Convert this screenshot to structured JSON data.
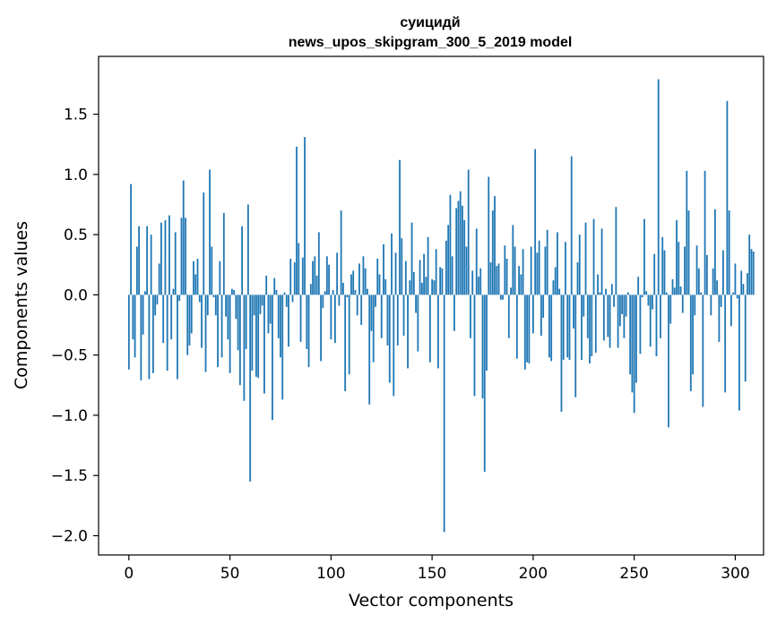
{
  "chart_data": {
    "type": "bar",
    "title": "суицидй",
    "subtitle": "news_upos_skipgram_300_5_2019 model",
    "xlabel": "Vector components",
    "ylabel": "Components values",
    "xlim": [
      -15,
      314
    ],
    "ylim": [
      -2.16,
      1.98
    ],
    "xticks": [
      0,
      50,
      100,
      150,
      200,
      250,
      300
    ],
    "xtick_labels": [
      "0",
      "50",
      "100",
      "150",
      "200",
      "250",
      "300"
    ],
    "yticks": [
      -2.0,
      -1.5,
      -1.0,
      -0.5,
      0.0,
      0.5,
      1.0,
      1.5
    ],
    "ytick_labels": [
      "−2.0",
      "−1.5",
      "−1.0",
      "−0.5",
      "0.0",
      "0.5",
      "1.0",
      "1.5"
    ],
    "grid": false,
    "bar_color": "#1f77b4",
    "values": [
      -0.62,
      0.92,
      -0.37,
      -0.52,
      0.4,
      0.57,
      -0.71,
      -0.33,
      0.03,
      0.57,
      -0.7,
      0.5,
      -0.65,
      -0.17,
      -0.08,
      0.26,
      0.6,
      -0.4,
      0.62,
      -0.63,
      0.66,
      -0.37,
      0.05,
      0.52,
      -0.7,
      -0.05,
      0.64,
      0.95,
      0.64,
      -0.5,
      -0.42,
      -0.32,
      0.28,
      0.17,
      0.3,
      -0.06,
      -0.44,
      0.85,
      -0.64,
      -0.17,
      1.04,
      0.4,
      -0.02,
      -0.17,
      -0.6,
      0.28,
      -0.52,
      0.68,
      -0.18,
      -0.37,
      -0.65,
      0.05,
      0.04,
      -0.2,
      -0.46,
      -0.75,
      0.57,
      -0.88,
      -0.45,
      0.75,
      -1.55,
      -0.63,
      -0.17,
      -0.68,
      -0.69,
      -0.16,
      -0.09,
      -0.82,
      0.16,
      -0.32,
      -0.24,
      -1.04,
      0.14,
      0.04,
      -0.36,
      -0.52,
      -0.87,
      0.02,
      -0.1,
      -0.43,
      0.3,
      -0.06,
      0.27,
      1.23,
      0.43,
      -0.39,
      0.31,
      1.31,
      -0.45,
      -0.6,
      0.09,
      0.28,
      0.32,
      0.16,
      0.52,
      -0.55,
      -0.11,
      0.03,
      0.32,
      0.25,
      -0.37,
      0.04,
      -0.4,
      0.35,
      -0.09,
      0.7,
      0.1,
      -0.8,
      -0.02,
      -0.66,
      0.17,
      0.2,
      0.04,
      -0.17,
      0.26,
      -0.25,
      0.32,
      0.22,
      0.05,
      -0.91,
      -0.3,
      -0.56,
      -0.1,
      0.3,
      0.17,
      -0.36,
      0.42,
      0.13,
      -0.42,
      -0.73,
      0.51,
      -0.84,
      0.35,
      -0.42,
      1.12,
      0.47,
      -0.34,
      0.28,
      -0.61,
      0.12,
      0.6,
      0.19,
      -0.15,
      -0.47,
      0.29,
      0.1,
      0.34,
      0.15,
      0.48,
      -0.56,
      0.13,
      0.12,
      0.38,
      -0.61,
      0.23,
      0.22,
      -1.97,
      0.45,
      0.58,
      0.83,
      0.32,
      -0.3,
      0.72,
      0.78,
      0.86,
      0.74,
      0.62,
      0.4,
      1.04,
      -0.36,
      0.2,
      -0.84,
      0.55,
      0.15,
      0.22,
      -0.86,
      -1.47,
      -0.63,
      0.98,
      0.27,
      0.7,
      0.82,
      0.24,
      0.26,
      -0.04,
      -0.04,
      0.41,
      0.3,
      -0.36,
      0.06,
      0.58,
      0.4,
      -0.53,
      0.24,
      0.17,
      0.38,
      -0.62,
      -0.56,
      -0.57,
      0.4,
      -0.32,
      1.21,
      0.35,
      0.45,
      -0.34,
      -0.19,
      0.4,
      0.54,
      -0.52,
      -0.55,
      0.12,
      0.23,
      0.52,
      0.05,
      -0.97,
      -0.54,
      0.44,
      -0.52,
      -0.54,
      1.15,
      -0.28,
      -0.85,
      0.27,
      0.5,
      -0.54,
      -0.18,
      0.6,
      -0.36,
      -0.57,
      -0.51,
      0.63,
      -0.48,
      0.17,
      0.02,
      0.55,
      -0.38,
      0.05,
      -0.35,
      -0.44,
      0.09,
      -0.1,
      0.73,
      -0.44,
      -0.26,
      -0.16,
      -0.36,
      -0.18,
      0.02,
      -0.66,
      -0.81,
      -0.98,
      -0.73,
      0.15,
      -0.49,
      -0.02,
      0.63,
      0.03,
      -0.09,
      -0.43,
      -0.12,
      0.34,
      -0.51,
      1.79,
      -0.36,
      0.48,
      0.37,
      0.02,
      -1.1,
      -0.24,
      0.13,
      0.06,
      0.62,
      0.44,
      0.07,
      -0.15,
      0.4,
      1.03,
      0.7,
      -0.8,
      -0.66,
      -0.17,
      0.41,
      0.22,
      0.02,
      -0.93,
      1.03,
      0.33,
      0.0,
      -0.17,
      0.22,
      0.71,
      0.12,
      -0.39,
      -0.1,
      0.37,
      -0.81,
      1.61,
      0.7,
      -0.26,
      0.02,
      0.26,
      -0.03,
      -0.96,
      0.2,
      0.09,
      -0.72,
      0.18,
      0.5,
      0.38,
      0.36
    ]
  }
}
